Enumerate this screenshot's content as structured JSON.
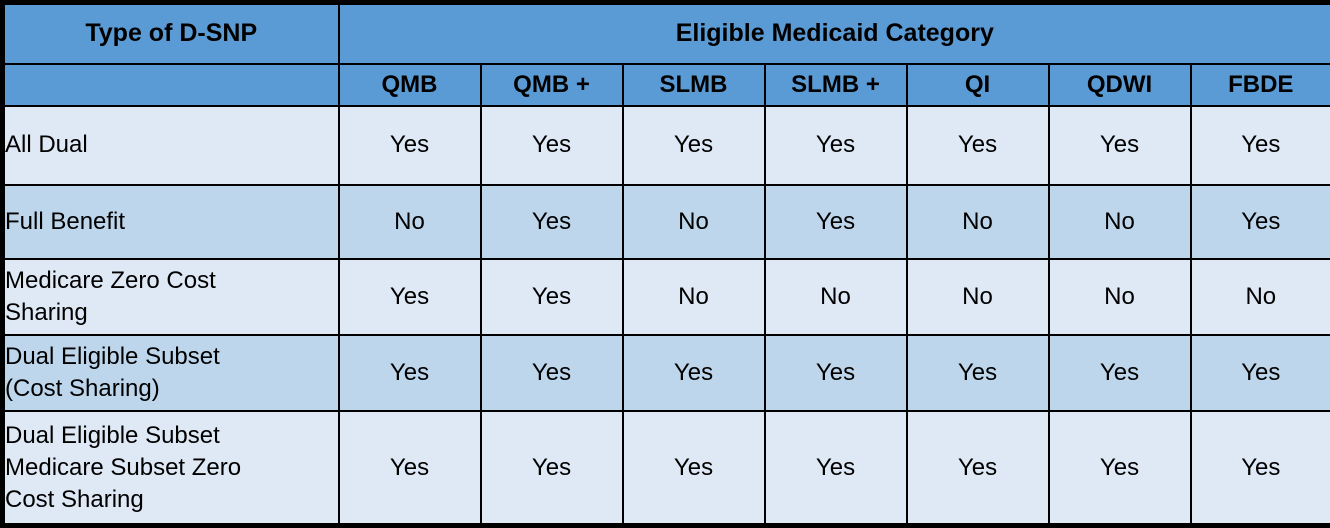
{
  "table": {
    "header": {
      "type_col_label": "Type of D-SNP",
      "category_group_label": "Eligible Medicaid Category",
      "category_columns": [
        "QMB",
        "QMB +",
        "SLMB",
        "SLMB +",
        "QI",
        "QDWI",
        "FBDE"
      ]
    },
    "rows": [
      {
        "label": "All Dual",
        "values": [
          "Yes",
          "Yes",
          "Yes",
          "Yes",
          "Yes",
          "Yes",
          "Yes"
        ]
      },
      {
        "label": "Full Benefit",
        "values": [
          "No",
          "Yes",
          "No",
          "Yes",
          "No",
          "No",
          "Yes"
        ]
      },
      {
        "label": "Medicare Zero Cost Sharing",
        "values": [
          "Yes",
          "Yes",
          "No",
          "No",
          "No",
          "No",
          "No"
        ]
      },
      {
        "label": "Dual Eligible Subset (Cost Sharing)",
        "values": [
          "Yes",
          "Yes",
          "Yes",
          "Yes",
          "Yes",
          "Yes",
          "Yes"
        ]
      },
      {
        "label": "Dual Eligible Subset Medicare Subset Zero Cost Sharing",
        "values": [
          "Yes",
          "Yes",
          "Yes",
          "Yes",
          "Yes",
          "Yes",
          "Yes"
        ]
      }
    ]
  },
  "colors": {
    "header_bg": "#5B9BD5",
    "row_light_bg": "#DEE9F5",
    "row_dark_bg": "#BDD6EC",
    "border": "#000000",
    "text": "#000000"
  }
}
